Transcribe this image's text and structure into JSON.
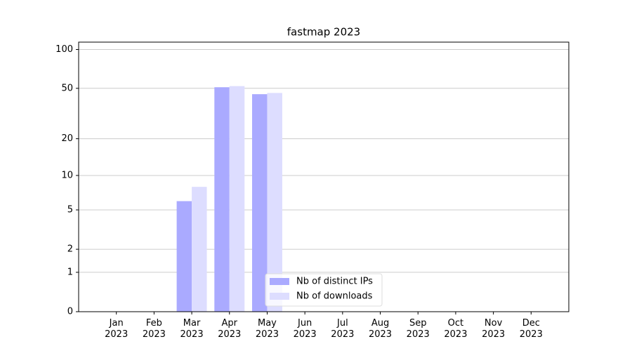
{
  "chart_data": {
    "type": "bar",
    "title": "fastmap 2023",
    "categories": [
      "Jan\n2023",
      "Feb\n2023",
      "Mar\n2023",
      "Apr\n2023",
      "May\n2023",
      "Jun\n2023",
      "Jul\n2023",
      "Aug\n2023",
      "Sep\n2023",
      "Oct\n2023",
      "Nov\n2023",
      "Dec\n2023"
    ],
    "series": [
      {
        "name": "Nb of distinct IPs",
        "color": "#aaaaff",
        "values": [
          0,
          0,
          6,
          51,
          45,
          0,
          0,
          0,
          0,
          0,
          0,
          0
        ]
      },
      {
        "name": "Nb of downloads",
        "color": "#ddddff",
        "values": [
          0,
          0,
          8,
          52,
          46,
          0,
          0,
          0,
          0,
          0,
          0,
          0
        ]
      }
    ],
    "yscale": "log1p",
    "ylim": [
      0,
      114
    ],
    "yticks": [
      0,
      1,
      2,
      5,
      10,
      20,
      50,
      100
    ],
    "grid": true,
    "legend": "lower center"
  }
}
